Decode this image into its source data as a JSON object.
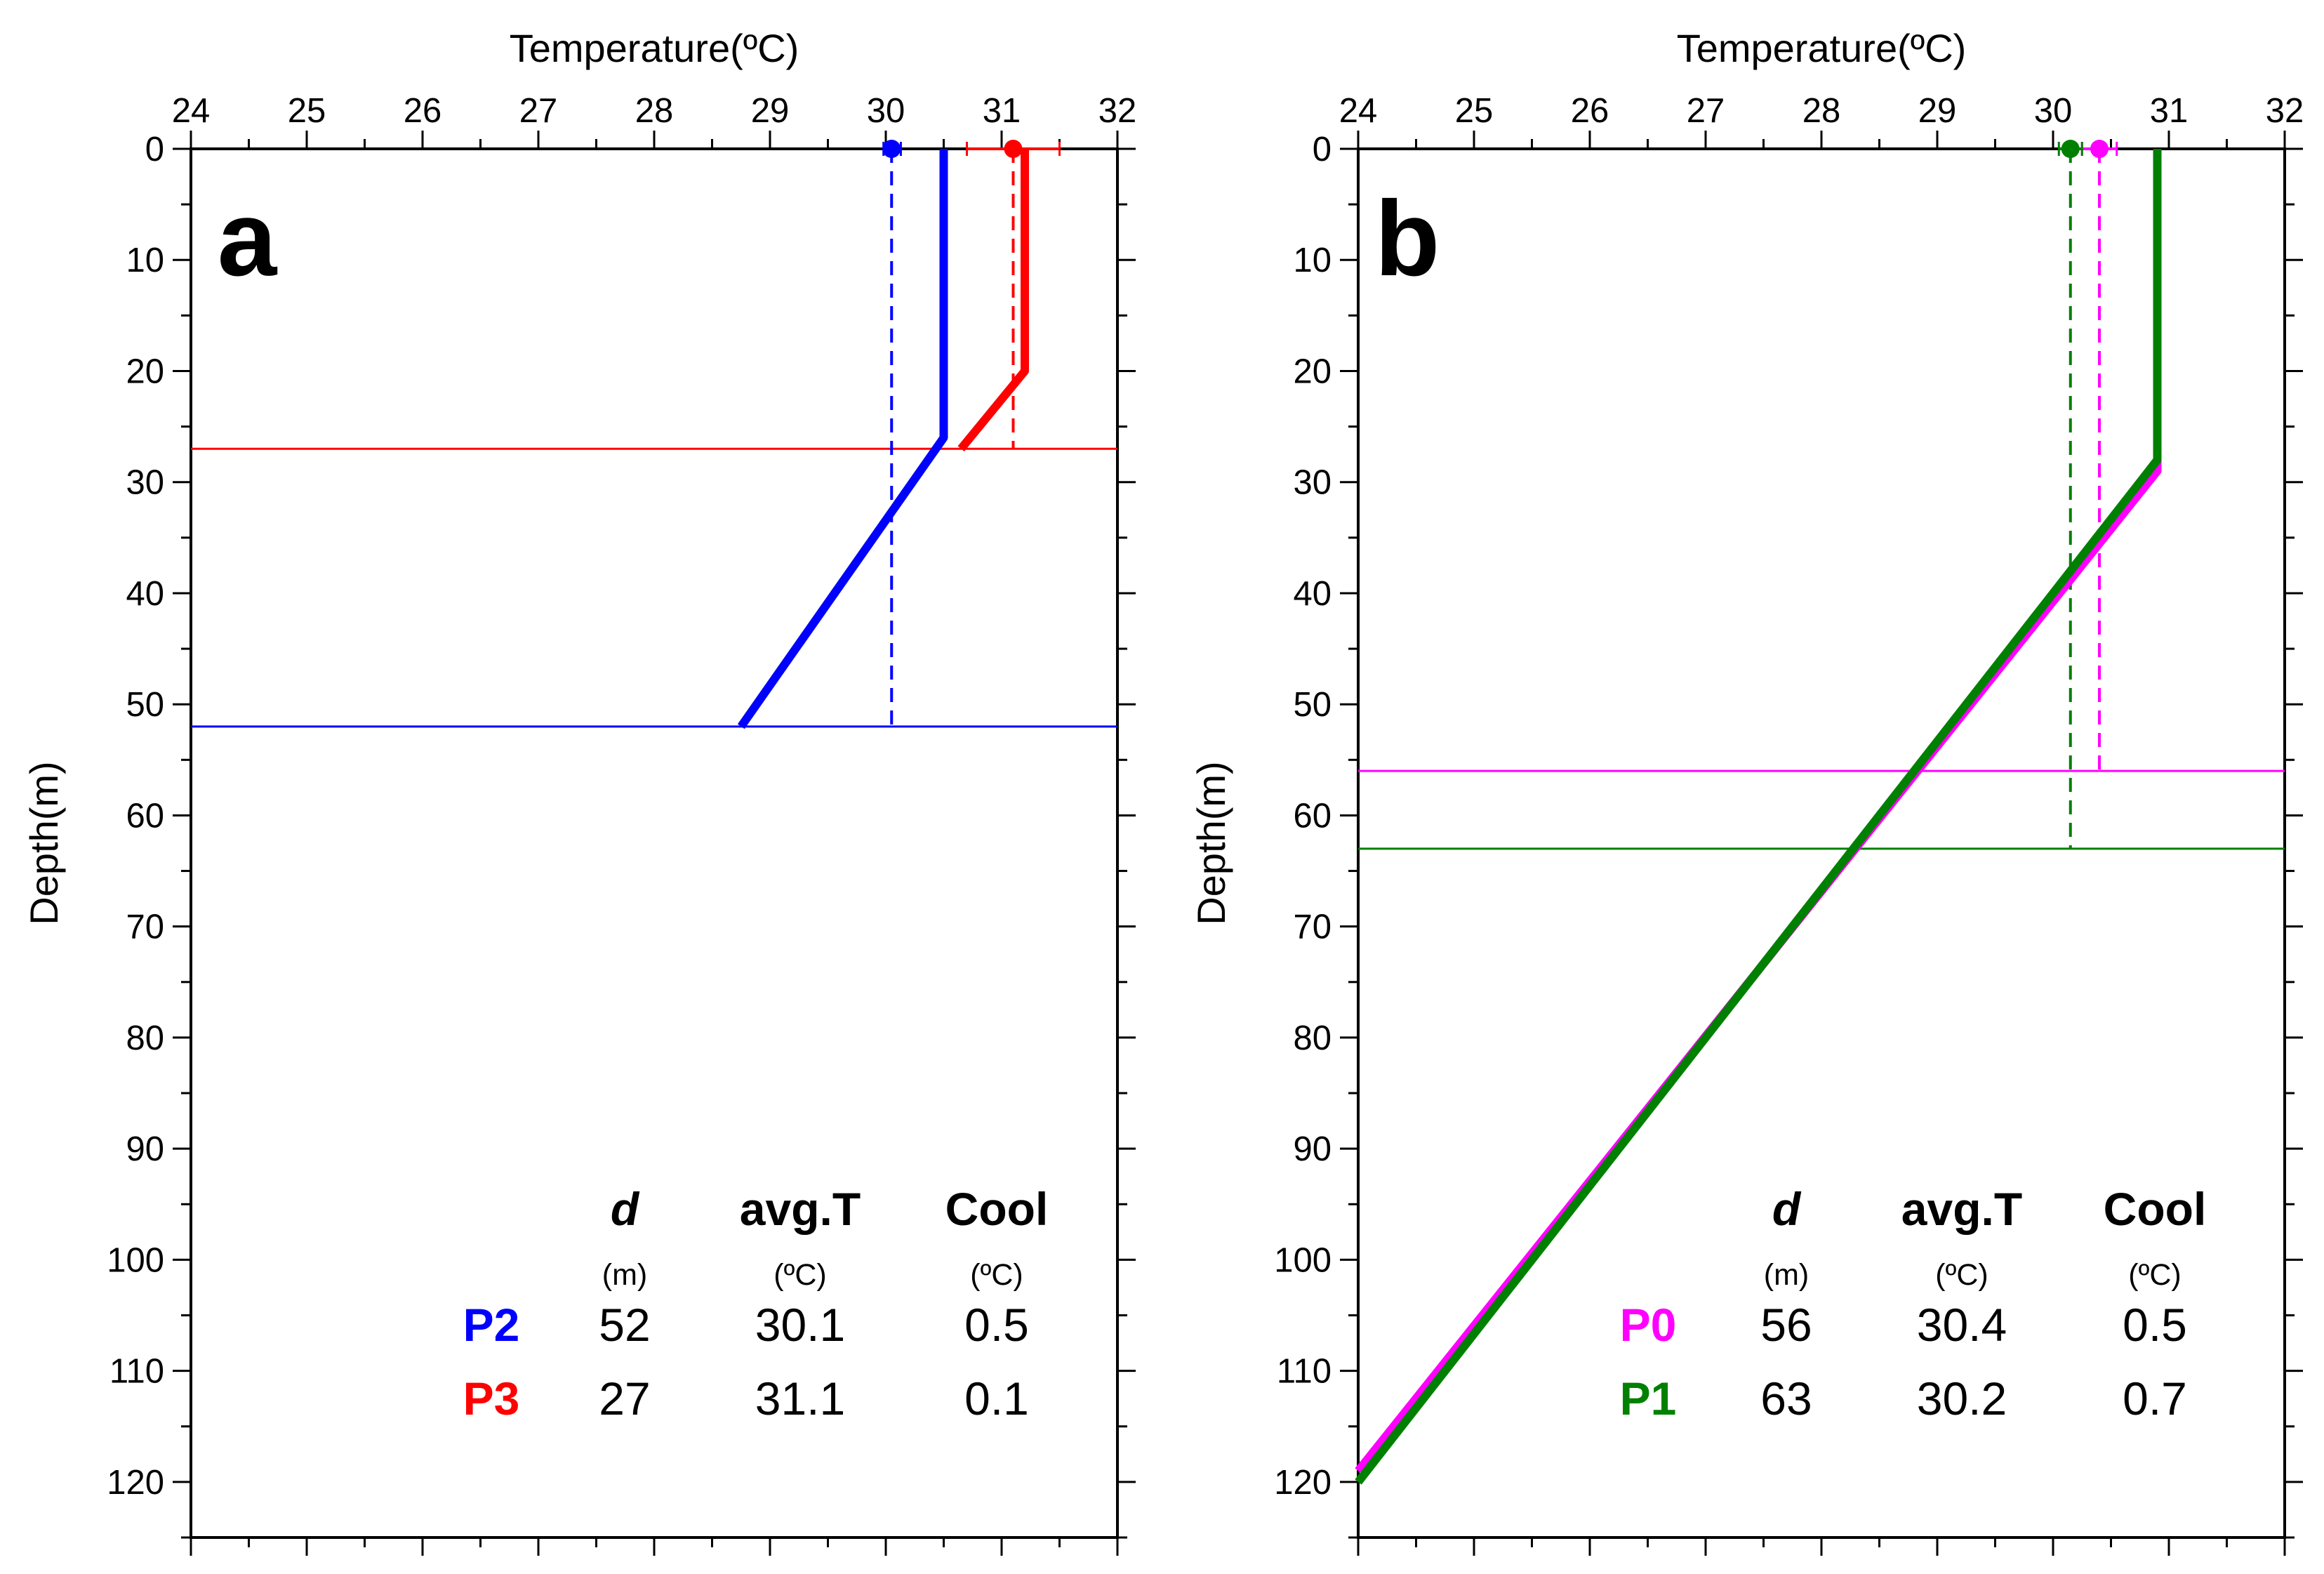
{
  "chart_data": [
    {
      "type": "line",
      "panel_label": "a",
      "xlabel": "Temperature(ºC)",
      "ylabel": "Depth(m)",
      "xlim": [
        24,
        32
      ],
      "ylim": [
        0,
        125
      ],
      "y_inverted": true,
      "x_axis_position": "top",
      "xticks": [
        24,
        25,
        26,
        27,
        28,
        29,
        30,
        31,
        32
      ],
      "yticks": [
        0,
        10,
        20,
        30,
        40,
        50,
        60,
        70,
        80,
        90,
        100,
        110,
        120
      ],
      "grid": false,
      "series": [
        {
          "name": "P2",
          "color": "#0000ff",
          "profile": [
            {
              "x": 30.5,
              "y": 0
            },
            {
              "x": 30.5,
              "y": 26
            },
            {
              "x": 28.75,
              "y": 52
            }
          ],
          "mixed_layer_depth": 52,
          "avg_temperature": 30.05,
          "avg_temperature_range": [
            29.98,
            30.13
          ],
          "avg_line_to_depth": 52
        },
        {
          "name": "P3",
          "color": "#ff0000",
          "profile": [
            {
              "x": 31.2,
              "y": 0
            },
            {
              "x": 31.2,
              "y": 20
            },
            {
              "x": 30.65,
              "y": 27
            }
          ],
          "mixed_layer_depth": 27,
          "avg_temperature": 31.1,
          "avg_temperature_range": [
            30.7,
            31.5
          ],
          "avg_line_to_depth": 27
        }
      ],
      "table": {
        "headers": [
          "d",
          "avg.T",
          "Cool"
        ],
        "units": [
          "(m)",
          "(ºC)",
          "(ºC)"
        ],
        "rows": [
          {
            "name": "P2",
            "color": "#0000ff",
            "values": [
              "52",
              "30.1",
              "0.5"
            ]
          },
          {
            "name": "P3",
            "color": "#ff0000",
            "values": [
              "27",
              "31.1",
              "0.1"
            ]
          }
        ]
      }
    },
    {
      "type": "line",
      "panel_label": "b",
      "xlabel": "Temperature(ºC)",
      "ylabel": "Depth(m)",
      "xlim": [
        24,
        32
      ],
      "ylim": [
        0,
        125
      ],
      "y_inverted": true,
      "x_axis_position": "top",
      "xticks": [
        24,
        25,
        26,
        27,
        28,
        29,
        30,
        31,
        32
      ],
      "yticks": [
        0,
        10,
        20,
        30,
        40,
        50,
        60,
        70,
        80,
        90,
        100,
        110,
        120
      ],
      "grid": false,
      "series": [
        {
          "name": "P0",
          "color": "#ff00ff",
          "profile": [
            {
              "x": 30.9,
              "y": 0
            },
            {
              "x": 30.9,
              "y": 29
            },
            {
              "x": 24,
              "y": 119
            }
          ],
          "mixed_layer_depth": 56,
          "avg_temperature": 30.4,
          "avg_temperature_range": [
            30.25,
            30.55
          ],
          "avg_line_to_depth": 56
        },
        {
          "name": "P1",
          "color": "#008000",
          "profile": [
            {
              "x": 30.9,
              "y": 0
            },
            {
              "x": 30.9,
              "y": 28
            },
            {
              "x": 24,
              "y": 120
            }
          ],
          "mixed_layer_depth": 63,
          "avg_temperature": 30.15,
          "avg_temperature_range": [
            30.05,
            30.25
          ],
          "avg_line_to_depth": 63
        }
      ],
      "table": {
        "headers": [
          "d",
          "avg.T",
          "Cool"
        ],
        "units": [
          "(m)",
          "(ºC)",
          "(ºC)"
        ],
        "rows": [
          {
            "name": "P0",
            "color": "#ff00ff",
            "values": [
              "56",
              "30.4",
              "0.5"
            ]
          },
          {
            "name": "P1",
            "color": "#008000",
            "values": [
              "63",
              "30.2",
              "0.7"
            ]
          }
        ]
      }
    }
  ]
}
